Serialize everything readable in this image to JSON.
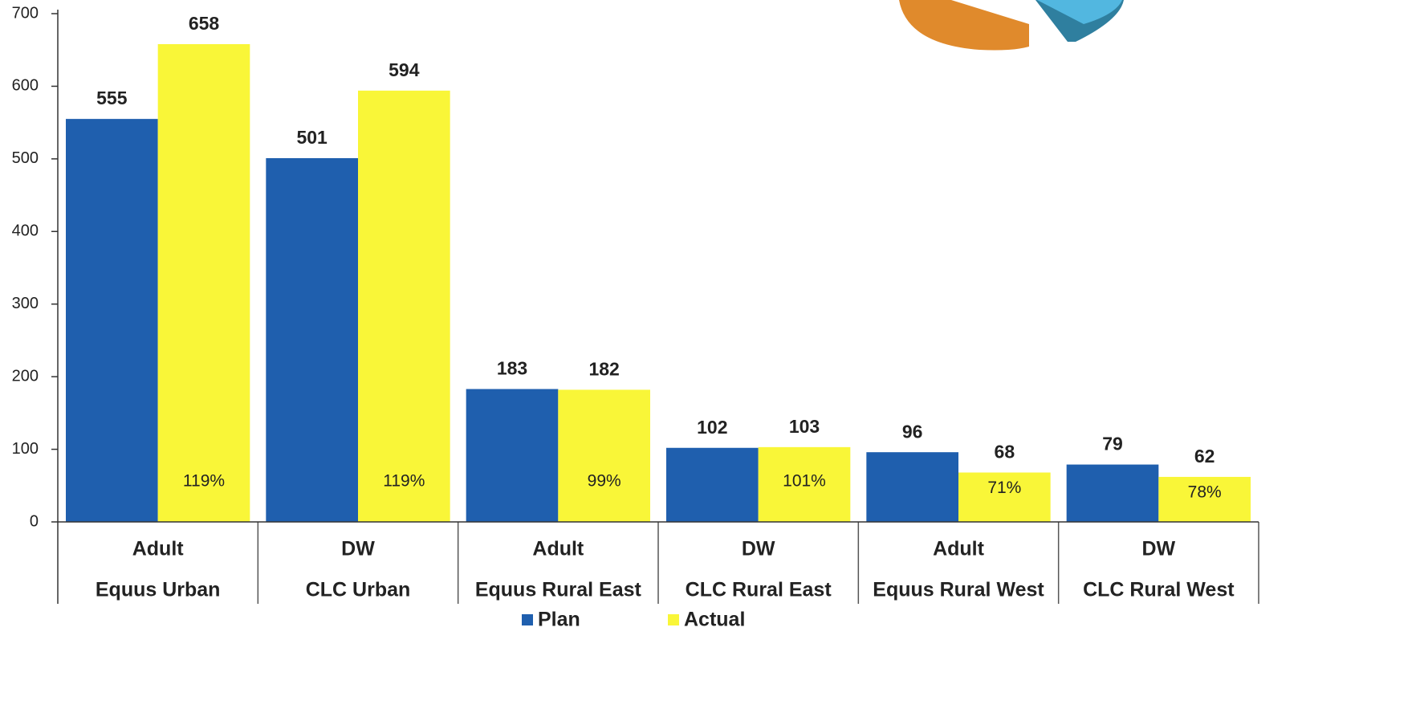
{
  "chart_data": {
    "type": "bar",
    "categories": [
      "Equus Urban",
      "CLC Urban",
      "Equus Rural East",
      "CLC Rural East",
      "Equus Rural West",
      "CLC Rural West"
    ],
    "category_types": [
      "Adult",
      "DW",
      "Adult",
      "DW",
      "Adult",
      "DW"
    ],
    "series": [
      {
        "name": "Plan",
        "color": "#1f5fae",
        "values": [
          555,
          501,
          183,
          102,
          96,
          79
        ]
      },
      {
        "name": "Actual",
        "color": "#f9f638",
        "values": [
          658,
          594,
          182,
          103,
          68,
          62
        ],
        "percent_labels": [
          "119%",
          "119%",
          "99%",
          "101%",
          "71%",
          "78%"
        ]
      }
    ],
    "ylim": [
      0,
      700
    ],
    "yticks": [
      0,
      100,
      200,
      300,
      400,
      500,
      600,
      700
    ],
    "grid": false
  }
}
